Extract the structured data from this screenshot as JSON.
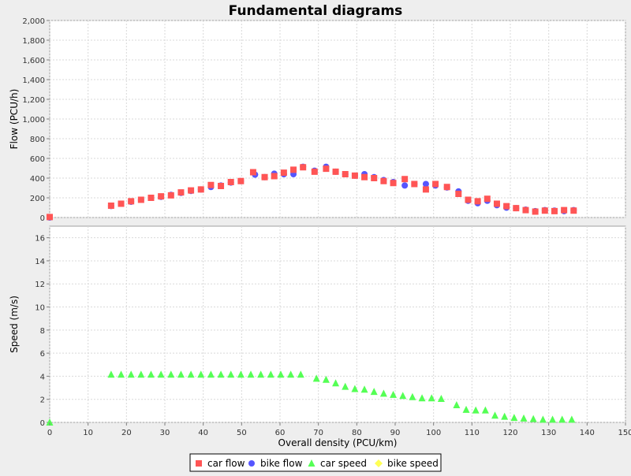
{
  "colors": {
    "background": "#eeeeee",
    "plot_background": "#ffffff",
    "grid": "#d9d9d9",
    "car_flow": "#ff5555",
    "bike_flow": "#5555ff",
    "car_speed": "#55ff55",
    "bike_speed": "#ffff55"
  },
  "chart_data": {
    "type": "scatter",
    "title": "Fundamental diagrams",
    "xlabel": "Overall density (PCU/km)",
    "xlim": [
      0,
      150
    ],
    "x_ticks": [
      0,
      10,
      20,
      30,
      40,
      50,
      60,
      70,
      80,
      90,
      100,
      110,
      120,
      130,
      140,
      150
    ],
    "grid": true,
    "legend_position": "bottom-center",
    "legend": [
      {
        "name": "car flow",
        "marker": "square",
        "color": "#ff5555"
      },
      {
        "name": "bike flow",
        "marker": "circle",
        "color": "#5555ff"
      },
      {
        "name": "car speed",
        "marker": "triangle",
        "color": "#55ff55"
      },
      {
        "name": "bike speed",
        "marker": "diamond",
        "color": "#ffff55"
      }
    ],
    "panels": [
      {
        "ylabel": "Flow (PCU/h)",
        "ylim": [
          0,
          2000
        ],
        "y_ticks": [
          0,
          200,
          400,
          600,
          800,
          1000,
          1200,
          1400,
          1600,
          1800,
          2000
        ],
        "y_tick_labels": [
          "0",
          "200",
          "400",
          "600",
          "800",
          "1,000",
          "1,200",
          "1,400",
          "1,600",
          "1,800",
          "2,000"
        ],
        "series": [
          {
            "name": "bike flow",
            "marker": "circle",
            "color": "#5555ff",
            "points": [
              [
                0,
                0
              ],
              [
                16,
                117
              ],
              [
                18.6,
                140
              ],
              [
                21.2,
                160
              ],
              [
                23.8,
                180
              ],
              [
                26.4,
                200
              ],
              [
                29,
                210
              ],
              [
                31.6,
                230
              ],
              [
                34.2,
                250
              ],
              [
                36.8,
                270
              ],
              [
                39.4,
                285
              ],
              [
                42,
                310
              ],
              [
                44.6,
                325
              ],
              [
                47.2,
                355
              ],
              [
                49.8,
                370
              ],
              [
                53.5,
                435
              ],
              [
                56,
                410
              ],
              [
                58.5,
                445
              ],
              [
                61,
                440
              ],
              [
                63.5,
                440
              ],
              [
                66,
                515
              ],
              [
                69,
                475
              ],
              [
                72,
                515
              ],
              [
                74.5,
                465
              ],
              [
                77,
                440
              ],
              [
                79.5,
                425
              ],
              [
                82,
                440
              ],
              [
                84.5,
                410
              ],
              [
                87,
                380
              ],
              [
                89.5,
                360
              ],
              [
                92.5,
                325
              ],
              [
                95,
                340
              ],
              [
                98,
                340
              ],
              [
                100.5,
                325
              ],
              [
                103.5,
                305
              ],
              [
                106.5,
                265
              ],
              [
                109,
                170
              ],
              [
                111.5,
                145
              ],
              [
                114,
                170
              ],
              [
                116.5,
                125
              ],
              [
                119,
                100
              ],
              [
                121.5,
                95
              ],
              [
                124,
                80
              ],
              [
                126.5,
                65
              ],
              [
                129,
                75
              ],
              [
                131.5,
                70
              ],
              [
                134,
                65
              ],
              [
                136.5,
                75
              ]
            ]
          },
          {
            "name": "car flow",
            "marker": "square",
            "color": "#ff5555",
            "points": [
              [
                0,
                5
              ],
              [
                16,
                120
              ],
              [
                18.6,
                140
              ],
              [
                21.2,
                165
              ],
              [
                23.8,
                180
              ],
              [
                26.4,
                200
              ],
              [
                29,
                215
              ],
              [
                31.6,
                225
              ],
              [
                34.2,
                255
              ],
              [
                36.8,
                275
              ],
              [
                39.4,
                285
              ],
              [
                42,
                330
              ],
              [
                44.6,
                320
              ],
              [
                47.2,
                360
              ],
              [
                49.8,
                370
              ],
              [
                53,
                460
              ],
              [
                56,
                410
              ],
              [
                58.5,
                420
              ],
              [
                61,
                455
              ],
              [
                63.5,
                485
              ],
              [
                66,
                510
              ],
              [
                69,
                465
              ],
              [
                72,
                495
              ],
              [
                74.5,
                465
              ],
              [
                77,
                440
              ],
              [
                79.5,
                425
              ],
              [
                82,
                410
              ],
              [
                84.5,
                400
              ],
              [
                87,
                370
              ],
              [
                89.5,
                350
              ],
              [
                92.5,
                390
              ],
              [
                95,
                340
              ],
              [
                98,
                285
              ],
              [
                100.5,
                340
              ],
              [
                103.5,
                310
              ],
              [
                106.5,
                240
              ],
              [
                109,
                180
              ],
              [
                111.5,
                165
              ],
              [
                114,
                190
              ],
              [
                116.5,
                140
              ],
              [
                119,
                115
              ],
              [
                121.5,
                95
              ],
              [
                124,
                75
              ],
              [
                126.5,
                60
              ],
              [
                129,
                70
              ],
              [
                131.5,
                65
              ],
              [
                134,
                75
              ],
              [
                136.5,
                70
              ]
            ]
          }
        ]
      },
      {
        "ylabel": "Speed (m/s)",
        "ylim": [
          0,
          17
        ],
        "y_ticks": [
          0,
          2,
          4,
          6,
          8,
          10,
          12,
          14,
          16
        ],
        "y_tick_labels": [
          "0",
          "2",
          "4",
          "6",
          "8",
          "10",
          "12",
          "14",
          "16"
        ],
        "series": [
          {
            "name": "car speed",
            "marker": "triangle",
            "color": "#55ff55",
            "points": [
              [
                0,
                0
              ],
              [
                16,
                4.15
              ],
              [
                18.6,
                4.15
              ],
              [
                21.2,
                4.15
              ],
              [
                23.8,
                4.15
              ],
              [
                26.4,
                4.15
              ],
              [
                29,
                4.15
              ],
              [
                31.6,
                4.15
              ],
              [
                34.2,
                4.15
              ],
              [
                36.8,
                4.15
              ],
              [
                39.4,
                4.15
              ],
              [
                42,
                4.15
              ],
              [
                44.6,
                4.15
              ],
              [
                47.2,
                4.15
              ],
              [
                49.8,
                4.15
              ],
              [
                52.4,
                4.15
              ],
              [
                55,
                4.15
              ],
              [
                57.6,
                4.15
              ],
              [
                60.2,
                4.15
              ],
              [
                62.8,
                4.15
              ],
              [
                65.4,
                4.15
              ],
              [
                69.5,
                3.8
              ],
              [
                72,
                3.7
              ],
              [
                74.5,
                3.4
              ],
              [
                77,
                3.1
              ],
              [
                79.5,
                2.9
              ],
              [
                82,
                2.85
              ],
              [
                84.5,
                2.65
              ],
              [
                87,
                2.5
              ],
              [
                89.5,
                2.4
              ],
              [
                92,
                2.3
              ],
              [
                94.5,
                2.2
              ],
              [
                97,
                2.1
              ],
              [
                99.5,
                2.1
              ],
              [
                102,
                2.05
              ],
              [
                106,
                1.5
              ],
              [
                108.5,
                1.1
              ],
              [
                111,
                1.05
              ],
              [
                113.5,
                1.05
              ],
              [
                116,
                0.6
              ],
              [
                118.5,
                0.5
              ],
              [
                121,
                0.4
              ],
              [
                123.5,
                0.35
              ],
              [
                126,
                0.3
              ],
              [
                128.5,
                0.25
              ],
              [
                131,
                0.25
              ],
              [
                133.5,
                0.25
              ],
              [
                136,
                0.25
              ]
            ]
          },
          {
            "name": "bike speed",
            "marker": "diamond",
            "color": "#ffff55",
            "points": []
          }
        ]
      }
    ]
  }
}
